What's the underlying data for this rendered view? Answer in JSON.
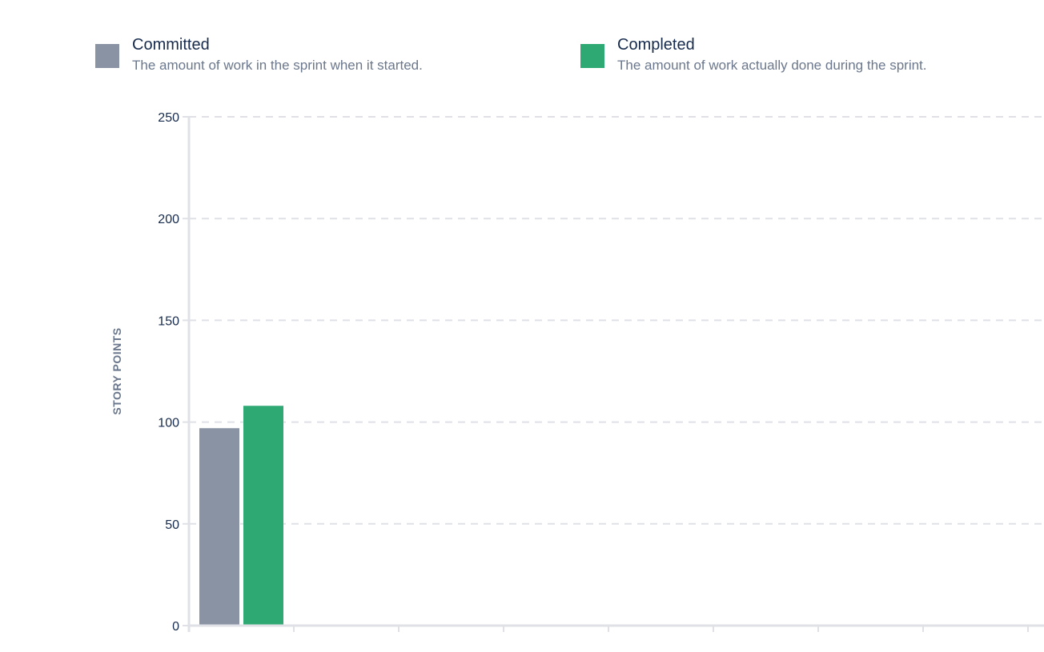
{
  "legend": {
    "items": [
      {
        "title": "Committed",
        "description": "The amount of work in the sprint when it started.",
        "color": "#8993a4"
      },
      {
        "title": "Completed",
        "description": "The amount of work actually done during the sprint.",
        "color": "#2ea973"
      }
    ]
  },
  "chart_data": {
    "type": "bar",
    "ylabel": "STORY POINTS",
    "xlabel": "",
    "ylim": [
      0,
      250
    ],
    "yticks": [
      0,
      50,
      100,
      150,
      200,
      250
    ],
    "grid": true,
    "legend_placement": "top",
    "categories": [
      ""
    ],
    "series": [
      {
        "name": "Committed",
        "values": [
          97
        ],
        "color": "#8993a4"
      },
      {
        "name": "Completed",
        "values": [
          108
        ],
        "color": "#2ea973"
      }
    ]
  }
}
